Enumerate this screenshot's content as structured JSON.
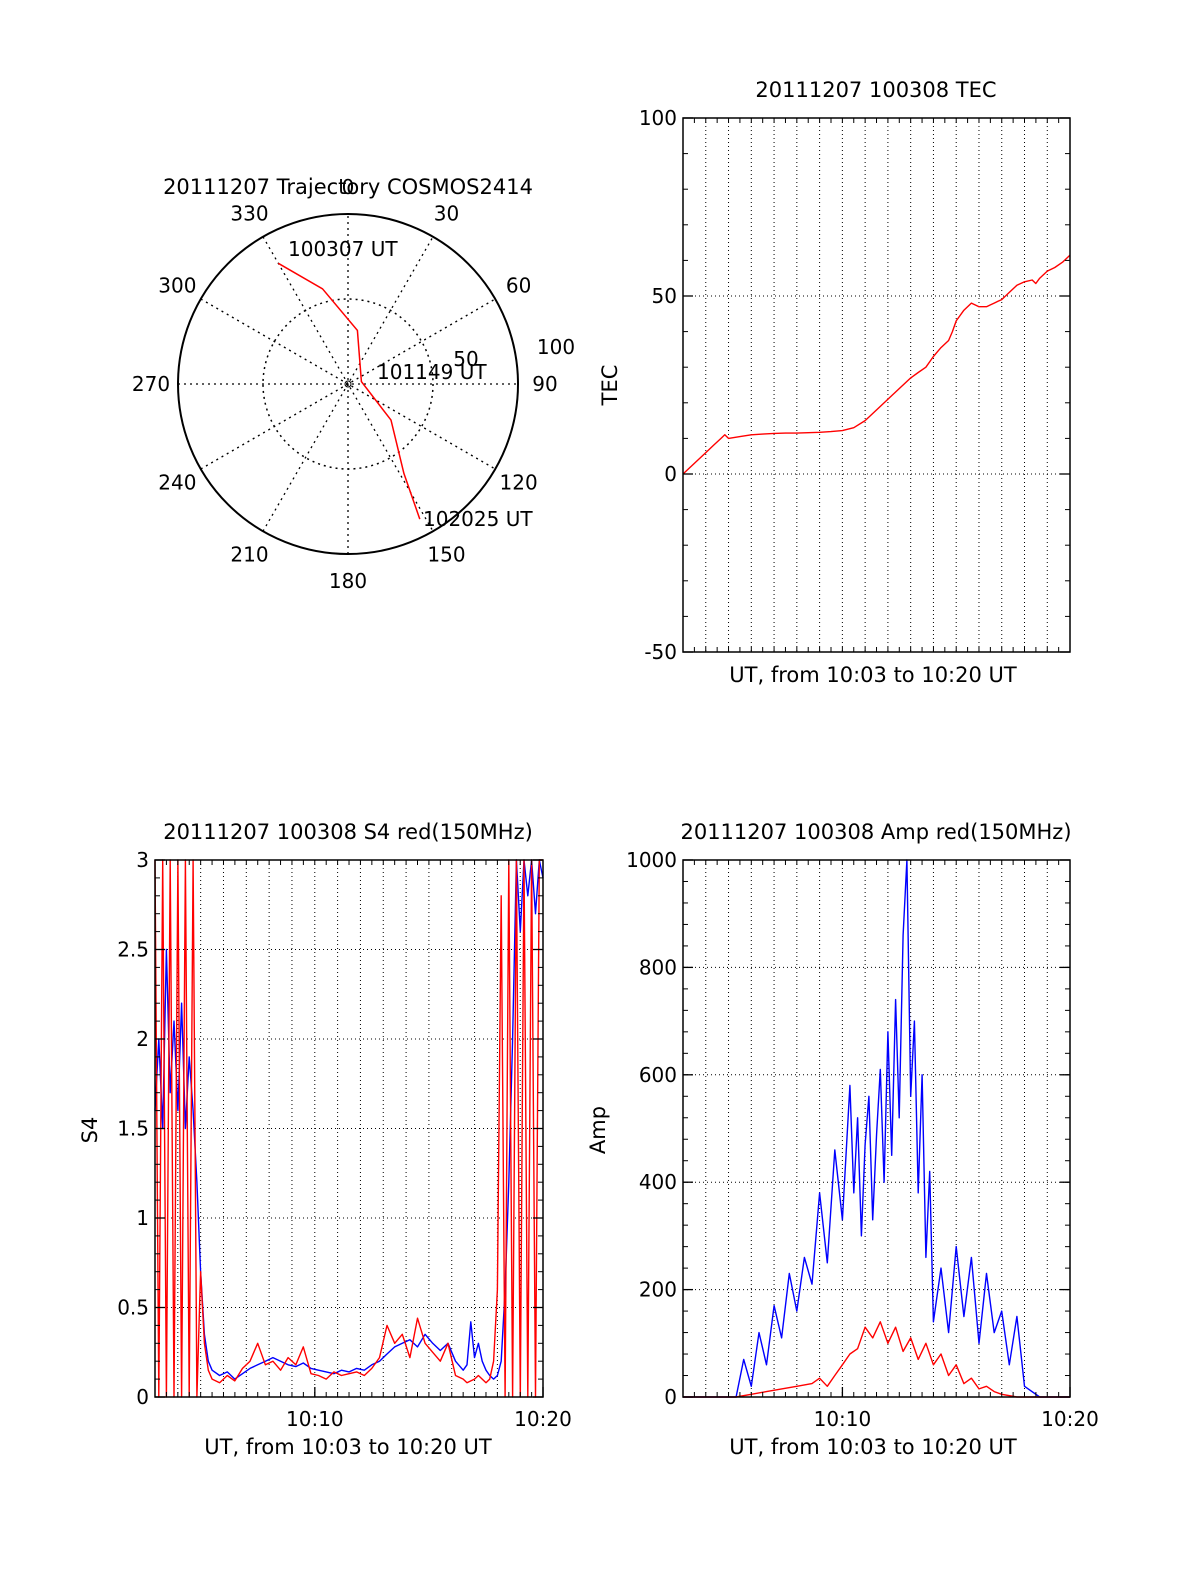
{
  "figure": {
    "background": "#ffffff"
  },
  "chart_data": [
    {
      "id": "polar",
      "type": "scatter",
      "subtype": "polar-trajectory",
      "title": "20111207 Trajectory COSMOS2414",
      "azimuth_labels": [
        "0",
        "30",
        "60",
        "90",
        "120",
        "150",
        "180",
        "210",
        "240",
        "270",
        "300",
        "330"
      ],
      "elevation_labels": [
        "50",
        "100"
      ],
      "grid": true,
      "series": [
        {
          "color": "#ff0000",
          "points": [
            {
              "az": 330,
              "r": 0.82
            },
            {
              "az": 345,
              "r": 0.58
            },
            {
              "az": 10,
              "r": 0.32
            },
            {
              "az": 80,
              "r": 0.08
            },
            {
              "az": 130,
              "r": 0.33
            },
            {
              "az": 148,
              "r": 0.62
            },
            {
              "az": 152,
              "r": 0.9
            }
          ]
        }
      ],
      "annotations": [
        {
          "text": "100307 UT",
          "az": 330,
          "r": 0.82
        },
        {
          "text": "101149 UT",
          "az": 80,
          "r": 0.08
        },
        {
          "text": "102025 UT",
          "az": 152,
          "r": 0.9
        }
      ]
    },
    {
      "id": "tec",
      "type": "line",
      "title": "20111207 100308 TEC",
      "xlabel": "UT, from 10:03 to 10:20 UT",
      "ylabel": "TEC",
      "xlim": [
        10.05,
        10.3333
      ],
      "ylim": [
        -50,
        100
      ],
      "yticks": [
        -50,
        0,
        50,
        100
      ],
      "xticks": [],
      "grid": true,
      "series": [
        {
          "color": "#ff0000",
          "x": [
            10.05,
            10.0556,
            10.0611,
            10.0667,
            10.0722,
            10.0778,
            10.0806,
            10.0833,
            10.0917,
            10.1,
            10.1083,
            10.1167,
            10.125,
            10.1333,
            10.1417,
            10.15,
            10.1583,
            10.1667,
            10.175,
            10.1833,
            10.1917,
            10.2,
            10.2083,
            10.2167,
            10.2222,
            10.2278,
            10.2333,
            10.2389,
            10.2444,
            10.2472,
            10.25,
            10.2556,
            10.2611,
            10.2667,
            10.2722,
            10.275,
            10.2778,
            10.2806,
            10.2833,
            10.2889,
            10.2944,
            10.3,
            10.3056,
            10.3083,
            10.3111,
            10.3167,
            10.3222,
            10.3278,
            10.3333
          ],
          "y": [
            0,
            2,
            4,
            6,
            8,
            10,
            11,
            10,
            10.5,
            11,
            11.2,
            11.4,
            11.5,
            11.5,
            11.6,
            11.7,
            11.9,
            12.2,
            13,
            15,
            18,
            21,
            24,
            27,
            28.5,
            30,
            33,
            35.5,
            37.5,
            40,
            43,
            46,
            48,
            47,
            47,
            47.5,
            48,
            48.5,
            49,
            51,
            53,
            54,
            54.5,
            53.5,
            55,
            57,
            58,
            59.5,
            61.5
          ]
        }
      ]
    },
    {
      "id": "s4",
      "type": "line",
      "title": "20111207 100308 S4 red(150MHz)",
      "xlabel": "UT, from 10:03 to 10:20 UT",
      "ylabel": "S4",
      "xlim": [
        10.05,
        10.3333
      ],
      "ylim": [
        0,
        3
      ],
      "yticks": [
        0,
        0.5,
        1,
        1.5,
        2,
        2.5,
        3
      ],
      "xticks": [
        {
          "value": 10.1667,
          "label": "10:10"
        },
        {
          "value": 10.3333,
          "label": "10:20"
        }
      ],
      "grid": true,
      "series": [
        {
          "color": "#0000ff",
          "x": [
            10.05,
            10.0528,
            10.0556,
            10.0583,
            10.0611,
            10.0639,
            10.0667,
            10.0694,
            10.0722,
            10.075,
            10.0778,
            10.0806,
            10.0833,
            10.0861,
            10.0889,
            10.0917,
            10.0972,
            10.1028,
            10.1083,
            10.1139,
            10.1194,
            10.125,
            10.1306,
            10.1361,
            10.1417,
            10.1472,
            10.1528,
            10.1583,
            10.1639,
            10.1694,
            10.175,
            10.1806,
            10.1861,
            10.1917,
            10.1972,
            10.2028,
            10.2083,
            10.2139,
            10.2194,
            10.225,
            10.2306,
            10.2361,
            10.2417,
            10.2472,
            10.2528,
            10.2583,
            10.2639,
            10.2694,
            10.275,
            10.2778,
            10.2806,
            10.2833,
            10.2861,
            10.2889,
            10.2917,
            10.2944,
            10.2972,
            10.3,
            10.3028,
            10.3056,
            10.3083,
            10.3111,
            10.3139,
            10.3167,
            10.3194,
            10.3222,
            10.325,
            10.3278,
            10.3306,
            10.3333
          ],
          "y": [
            1.6,
            2.0,
            1.5,
            2.5,
            1.7,
            2.1,
            1.6,
            2.2,
            1.5,
            1.9,
            1.6,
            1.2,
            0.7,
            0.35,
            0.2,
            0.15,
            0.12,
            0.14,
            0.1,
            0.13,
            0.16,
            0.18,
            0.2,
            0.22,
            0.2,
            0.18,
            0.17,
            0.19,
            0.16,
            0.15,
            0.14,
            0.13,
            0.15,
            0.14,
            0.16,
            0.15,
            0.18,
            0.2,
            0.24,
            0.28,
            0.3,
            0.32,
            0.28,
            0.35,
            0.3,
            0.26,
            0.3,
            0.2,
            0.15,
            0.18,
            0.42,
            0.22,
            0.3,
            0.2,
            0.15,
            0.12,
            0.1,
            0.12,
            0.2,
            0.6,
            1.2,
            2.0,
            3.0,
            2.6,
            3.0,
            2.8,
            3.0,
            2.7,
            3.0,
            2.9
          ]
        },
        {
          "color": "#ff0000",
          "x": [
            10.05,
            10.0528,
            10.0556,
            10.0583,
            10.0611,
            10.0639,
            10.0667,
            10.0694,
            10.0722,
            10.075,
            10.0778,
            10.0806,
            10.0833,
            10.0861,
            10.0889,
            10.0917,
            10.0972,
            10.1028,
            10.1083,
            10.1139,
            10.1194,
            10.125,
            10.1306,
            10.1361,
            10.1417,
            10.1472,
            10.1528,
            10.1583,
            10.1639,
            10.1694,
            10.175,
            10.1806,
            10.1861,
            10.1917,
            10.1972,
            10.2028,
            10.2083,
            10.2139,
            10.2194,
            10.225,
            10.2306,
            10.2361,
            10.2417,
            10.2472,
            10.2528,
            10.2583,
            10.2639,
            10.2694,
            10.275,
            10.2778,
            10.2806,
            10.2833,
            10.2861,
            10.2889,
            10.2917,
            10.2944,
            10.2972,
            10.3,
            10.3028,
            10.3056,
            10.3083,
            10.3111,
            10.3139,
            10.3167,
            10.3194,
            10.3222,
            10.325,
            10.3278,
            10.3306,
            10.3333
          ],
          "y": [
            3.0,
            0.0,
            3.0,
            0.0,
            3.0,
            0.0,
            3.0,
            0.0,
            3.0,
            0.0,
            3.0,
            0.0,
            0.7,
            0.3,
            0.15,
            0.1,
            0.08,
            0.12,
            0.09,
            0.16,
            0.2,
            0.3,
            0.18,
            0.2,
            0.15,
            0.22,
            0.18,
            0.28,
            0.13,
            0.12,
            0.1,
            0.14,
            0.12,
            0.13,
            0.14,
            0.12,
            0.16,
            0.22,
            0.4,
            0.3,
            0.35,
            0.22,
            0.44,
            0.3,
            0.25,
            0.2,
            0.3,
            0.12,
            0.1,
            0.08,
            0.09,
            0.1,
            0.12,
            0.1,
            0.08,
            0.1,
            0.2,
            0.6,
            2.8,
            0.0,
            3.0,
            0.0,
            3.0,
            0.0,
            3.0,
            0.0,
            3.0,
            0.0,
            3.0,
            3.0
          ]
        }
      ]
    },
    {
      "id": "amp",
      "type": "line",
      "title": "20111207 100308 Amp red(150MHz)",
      "xlabel": "UT, from 10:03 to 10:20 UT",
      "ylabel": "Amp",
      "xlim": [
        10.05,
        10.3333
      ],
      "ylim": [
        0,
        1000
      ],
      "yticks": [
        0,
        200,
        400,
        600,
        800,
        1000
      ],
      "xticks": [
        {
          "value": 10.1667,
          "label": "10:10"
        },
        {
          "value": 10.3333,
          "label": "10:20"
        }
      ],
      "grid": true,
      "series": [
        {
          "color": "#0000ff",
          "x": [
            10.05,
            10.0722,
            10.0889,
            10.0944,
            10.1,
            10.1056,
            10.1111,
            10.1167,
            10.1222,
            10.1278,
            10.1333,
            10.1389,
            10.1444,
            10.15,
            10.1556,
            10.1611,
            10.1667,
            10.1722,
            10.175,
            10.1778,
            10.1806,
            10.1833,
            10.1861,
            10.1889,
            10.1917,
            10.1944,
            10.1972,
            10.2,
            10.2028,
            10.2056,
            10.2083,
            10.2111,
            10.2139,
            10.2167,
            10.2194,
            10.2222,
            10.225,
            10.2278,
            10.2306,
            10.2333,
            10.2389,
            10.2444,
            10.25,
            10.2556,
            10.2611,
            10.2667,
            10.2722,
            10.2778,
            10.2833,
            10.2889,
            10.2944,
            10.3,
            10.3111,
            10.3333
          ],
          "y": [
            0,
            0,
            0,
            70,
            20,
            120,
            60,
            170,
            110,
            230,
            160,
            260,
            210,
            380,
            250,
            460,
            330,
            580,
            380,
            520,
            300,
            470,
            560,
            330,
            490,
            610,
            400,
            680,
            450,
            740,
            520,
            860,
            1000,
            560,
            700,
            380,
            600,
            260,
            420,
            140,
            240,
            120,
            280,
            150,
            260,
            100,
            230,
            120,
            160,
            60,
            150,
            20,
            0,
            0
          ]
        },
        {
          "color": "#ff0000",
          "x": [
            10.05,
            10.0889,
            10.1,
            10.1111,
            10.1222,
            10.1333,
            10.1444,
            10.15,
            10.1556,
            10.1611,
            10.1667,
            10.1722,
            10.1778,
            10.1833,
            10.1889,
            10.1944,
            10.2,
            10.2056,
            10.2111,
            10.2167,
            10.2222,
            10.2278,
            10.2333,
            10.2389,
            10.2444,
            10.25,
            10.2556,
            10.2611,
            10.2667,
            10.2722,
            10.2778,
            10.2833,
            10.2944,
            10.3333
          ],
          "y": [
            0,
            0,
            5,
            10,
            15,
            20,
            25,
            35,
            20,
            40,
            60,
            80,
            90,
            130,
            110,
            140,
            100,
            130,
            85,
            110,
            70,
            100,
            60,
            80,
            40,
            60,
            25,
            35,
            15,
            20,
            10,
            5,
            0,
            0
          ]
        }
      ]
    }
  ]
}
